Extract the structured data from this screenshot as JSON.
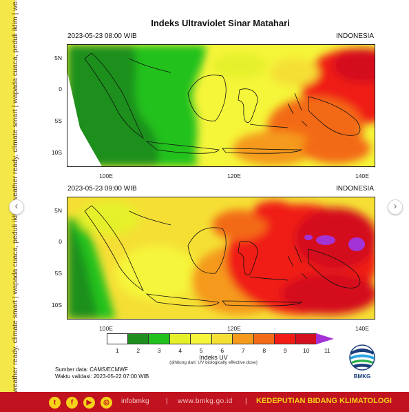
{
  "side_strip": {
    "text": "weather ready, climate smart  |  wapada cuaca, peduli iklim  |  weather ready, climate smart  |  wapada cuaca, peduli iklim  |  weather ready, climate smart  |  wapada cuaca, peduli iklim"
  },
  "title": "Indeks Ultraviolet Sinar Matahari",
  "panels": [
    {
      "date": "2023-05-23  08:00 WIB",
      "region": "INDONESIA"
    },
    {
      "date": "2023-05-23  09:00 WIB",
      "region": "INDONESIA"
    }
  ],
  "axes": {
    "lat_labels": [
      "5N",
      "0",
      "5S",
      "10S"
    ],
    "lon_labels": [
      "100E",
      "120E",
      "140E"
    ]
  },
  "colorbar": {
    "ticks": [
      "1",
      "2",
      "3",
      "4",
      "5",
      "6",
      "7",
      "8",
      "9",
      "10",
      "11"
    ],
    "colors": [
      "#ffffff",
      "#1e8f1e",
      "#23c11e",
      "#e6f02a",
      "#f5f53a",
      "#f5df35",
      "#f59a1d",
      "#f36a19",
      "#f01c15",
      "#d4101e",
      "#a433d6"
    ],
    "label": "Indeks UV",
    "sublabel": "(dihitung dari: UV biologically effective dose)"
  },
  "source": {
    "data": "Sumber data: CAMS/ECMWF",
    "validation": "Waktu validasi: 2023-05-22 07:00 WIB"
  },
  "logo": {
    "text": "BMKG"
  },
  "footer": {
    "handle": "infobmkg",
    "website": "www.bmkg.go.id",
    "department": "KEDEPUTIAN BIDANG KLIMATOLOGI",
    "social": [
      "twitter-icon",
      "facebook-icon",
      "youtube-icon",
      "instagram-icon"
    ]
  },
  "nav": {
    "prev": "‹",
    "next": "›"
  }
}
